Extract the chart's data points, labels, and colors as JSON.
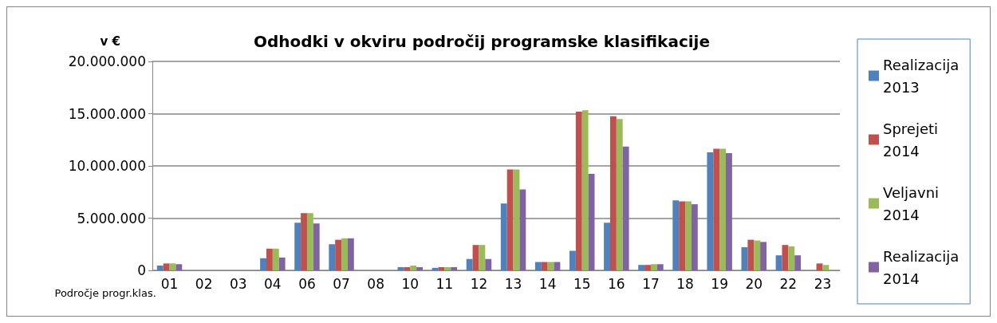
{
  "chart_data": {
    "type": "bar",
    "title": "Odhodki v okviru področij programske klasifikacije",
    "xlabel": "Področje progr.klas.",
    "ylabel": "v €",
    "categories": [
      "01",
      "02",
      "03",
      "04",
      "06",
      "07",
      "08",
      "10",
      "11",
      "12",
      "13",
      "14",
      "15",
      "16",
      "17",
      "18",
      "19",
      "20",
      "22",
      "23"
    ],
    "series": [
      {
        "name": "Realizacija 2013",
        "color": "#4f81bd",
        "values": [
          450000,
          0,
          0,
          1160000,
          4560000,
          2500000,
          0,
          310000,
          240000,
          1090000,
          6400000,
          800000,
          1870000,
          4560000,
          520000,
          6690000,
          11290000,
          2220000,
          1440000,
          0
        ]
      },
      {
        "name": "Sprejeti 2014",
        "color": "#c0504d",
        "values": [
          660000,
          0,
          0,
          2080000,
          5480000,
          2930000,
          0,
          310000,
          310000,
          2430000,
          9660000,
          800000,
          15190000,
          14760000,
          520000,
          6610000,
          11650000,
          2930000,
          2430000,
          660000
        ]
      },
      {
        "name": "Veljavni 2014",
        "color": "#9bbb59",
        "values": [
          660000,
          0,
          0,
          2080000,
          5480000,
          3070000,
          0,
          450000,
          310000,
          2430000,
          9660000,
          800000,
          15330000,
          14480000,
          590000,
          6610000,
          11650000,
          2860000,
          2290000,
          520000
        ]
      },
      {
        "name": "Realizacija 2014",
        "color": "#8064a2",
        "values": [
          590000,
          0,
          0,
          1230000,
          4490000,
          3070000,
          0,
          310000,
          310000,
          1090000,
          7750000,
          800000,
          9240000,
          11860000,
          590000,
          6330000,
          11220000,
          2720000,
          1440000,
          0
        ]
      }
    ],
    "ylim": [
      0,
      20000000
    ],
    "yticks": [
      0,
      {
        "value": 5000000,
        "label": "5.000.000"
      },
      {
        "value": 10000000,
        "label": "10.000.000"
      },
      {
        "value": 15000000,
        "label": "15.000.000"
      },
      {
        "value": 20000000,
        "label": "20.000.000"
      }
    ],
    "grid": "y",
    "legend": "right"
  }
}
